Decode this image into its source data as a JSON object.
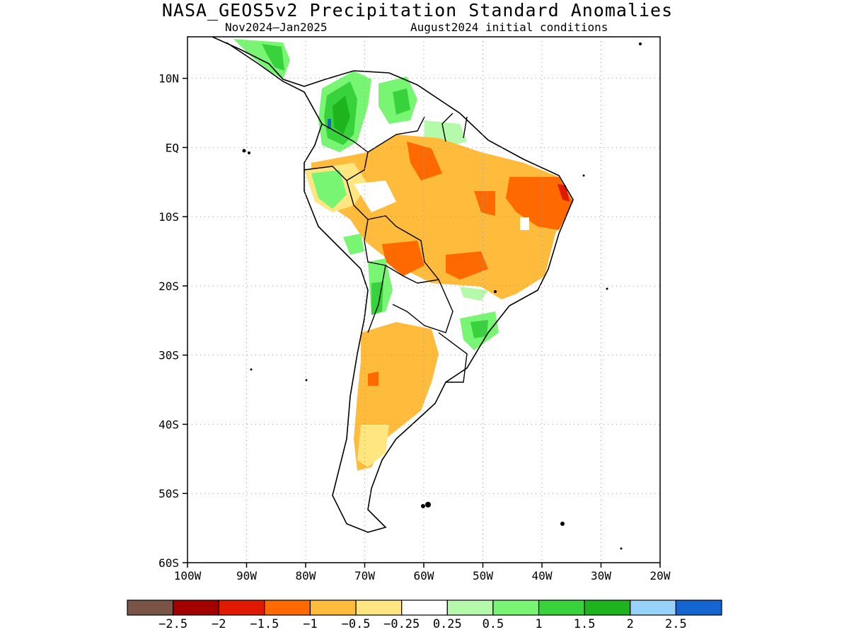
{
  "title": "NASA_GEOS5v2 Precipitation Standard Anomalies",
  "subtitle_period": "Nov2024–Jan2025",
  "subtitle_init": "August2024 initial conditions",
  "map": {
    "lon_range": [
      -100,
      -20
    ],
    "lat_range": [
      -60,
      16
    ],
    "lon_ticks": [
      {
        "value": -100,
        "label": "100W"
      },
      {
        "value": -90,
        "label": "90W"
      },
      {
        "value": -80,
        "label": "80W"
      },
      {
        "value": -70,
        "label": "70W"
      },
      {
        "value": -60,
        "label": "60W"
      },
      {
        "value": -50,
        "label": "50W"
      },
      {
        "value": -40,
        "label": "40W"
      },
      {
        "value": -30,
        "label": "30W"
      },
      {
        "value": -20,
        "label": "20W"
      }
    ],
    "lat_ticks": [
      {
        "value": 10,
        "label": "10N"
      },
      {
        "value": 0,
        "label": "EQ"
      },
      {
        "value": -10,
        "label": "10S"
      },
      {
        "value": -20,
        "label": "20S"
      },
      {
        "value": -30,
        "label": "30S"
      },
      {
        "value": -40,
        "label": "40S"
      },
      {
        "value": -50,
        "label": "50S"
      },
      {
        "value": -60,
        "label": "60S"
      }
    ],
    "grid": "dotted"
  },
  "colorbar": {
    "colors": [
      "#7a5547",
      "#a50000",
      "#e01a00",
      "#ff6a00",
      "#ffbb3c",
      "#ffe680",
      "#ffffff",
      "#b4faaa",
      "#78f573",
      "#37d23c",
      "#1eb41e",
      "#96d2fa",
      "#1464d2"
    ],
    "labels": [
      "−2.5",
      "−2",
      "−1.5",
      "−1",
      "−0.5",
      "−0.25",
      "0.25",
      "0.5",
      "1",
      "1.5",
      "2",
      "2.5"
    ]
  },
  "colors": {
    "dry_strong": "#ff6a00",
    "dry": "#ffbb3c",
    "dry_weak": "#ffe680",
    "wet_weak": "#b4faaa",
    "wet": "#78f573",
    "wet_mid": "#37d23c",
    "wet_strong": "#1eb41e",
    "wet_extreme": "#1464d2",
    "very_dry": "#e01a00"
  }
}
